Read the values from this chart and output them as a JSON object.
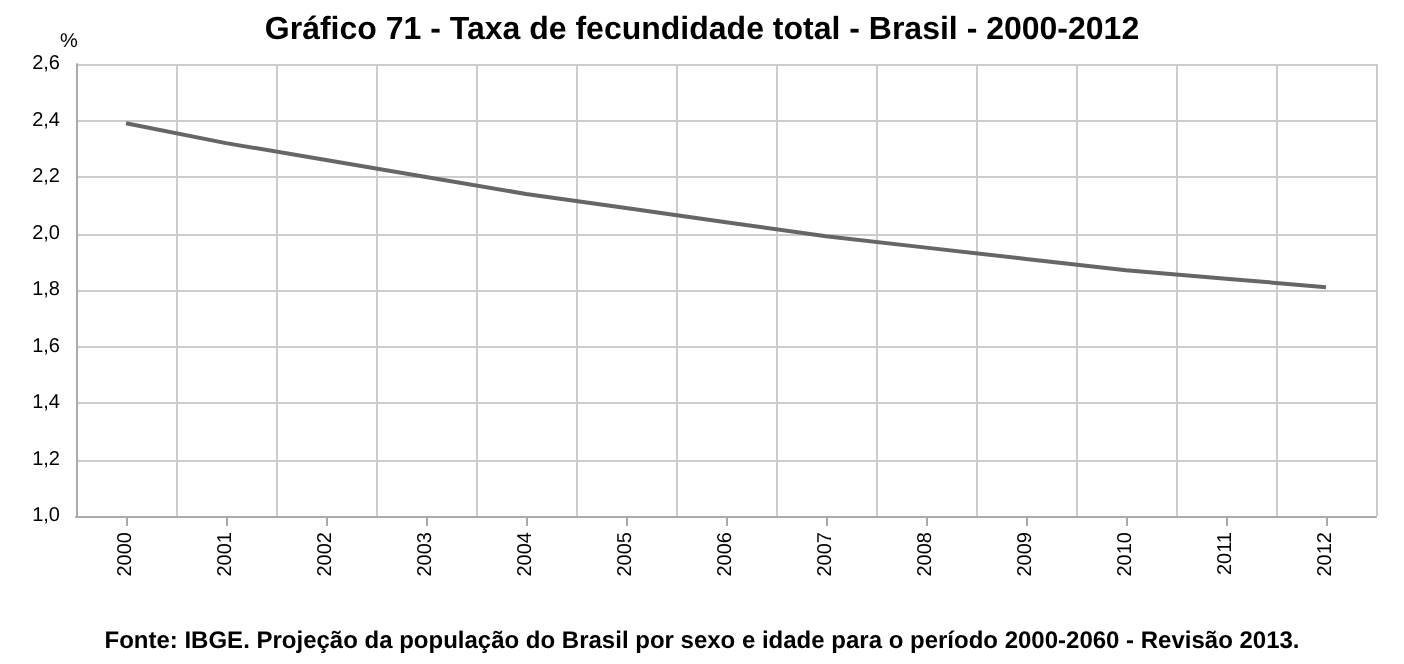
{
  "chart_data": {
    "type": "line",
    "title": "Gráfico 71 - Taxa de fecundidade total - Brasil - 2000-2012",
    "ylabel": "%",
    "categories": [
      "2000",
      "2001",
      "2002",
      "2003",
      "2004",
      "2005",
      "2006",
      "2007",
      "2008",
      "2009",
      "2010",
      "2011",
      "2012"
    ],
    "series": [
      {
        "color": "#666666",
        "values": [
          2.39,
          2.32,
          2.26,
          2.2,
          2.14,
          2.09,
          2.04,
          1.99,
          1.95,
          1.91,
          1.87,
          1.84,
          1.81
        ]
      }
    ],
    "ylim": [
      1.0,
      2.6
    ],
    "yticks": [
      {
        "value": 1.0,
        "label": "1,0"
      },
      {
        "value": 1.2,
        "label": "1,2"
      },
      {
        "value": 1.4,
        "label": "1,4"
      },
      {
        "value": 1.6,
        "label": "1,6"
      },
      {
        "value": 1.8,
        "label": "1,8"
      },
      {
        "value": 2.0,
        "label": "2,0"
      },
      {
        "value": 2.2,
        "label": "2,2"
      },
      {
        "value": 2.4,
        "label": "2,4"
      },
      {
        "value": 2.6,
        "label": "2,6"
      }
    ],
    "grid": true,
    "marker": "none",
    "line_style": "solid",
    "annotations": [
      "Fonte: IBGE. Projeção da população do Brasil por sexo e idade para o período 2000-2060 - Revisão 2013."
    ]
  }
}
